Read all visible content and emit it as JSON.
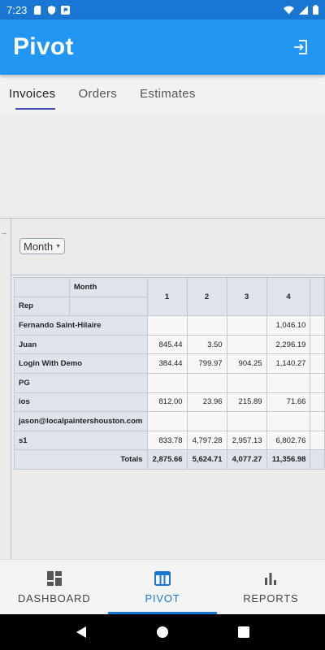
{
  "status_bar": {
    "time": "7:23",
    "icons_left": [
      "sd-card-icon",
      "shield-icon",
      "app-icon"
    ],
    "icons_right": [
      "wifi-icon",
      "signal-icon",
      "battery-icon"
    ]
  },
  "app_bar": {
    "title": "Pivot",
    "action_icon": "logout-icon",
    "color": "#2196f3"
  },
  "tabs": [
    {
      "label": "Invoices",
      "active": true
    },
    {
      "label": "Orders",
      "active": false
    },
    {
      "label": "Estimates",
      "active": false
    }
  ],
  "pivot": {
    "filter_select": "Month",
    "row_field_header": "Month",
    "rep_header": "Rep",
    "columns": [
      "1",
      "2",
      "3",
      "4"
    ],
    "rows": [
      {
        "rep": "Fernando Saint-Hilaire",
        "values": [
          "",
          "",
          "",
          "1,046.10"
        ]
      },
      {
        "rep": "Juan",
        "values": [
          "845.44",
          "3.50",
          "",
          "2,296.19"
        ]
      },
      {
        "rep": "Login With Demo",
        "values": [
          "384.44",
          "799.97",
          "904.25",
          "1,140.27"
        ]
      },
      {
        "rep": "PG",
        "values": [
          "",
          "",
          "",
          ""
        ]
      },
      {
        "rep": "ios",
        "values": [
          "812.00",
          "23.96",
          "215.89",
          "71.66"
        ]
      },
      {
        "rep": "jason@localpaintershouston.com",
        "values": [
          "",
          "",
          "",
          ""
        ]
      },
      {
        "rep": "s1",
        "values": [
          "833.78",
          "4,797.28",
          "2,957.13",
          "6,802.76"
        ]
      }
    ],
    "totals_label": "Totals",
    "totals": [
      "2,875.66",
      "5,624.71",
      "4,077.27",
      "11,356.98"
    ]
  },
  "bottom_nav": [
    {
      "label": "DASHBOARD",
      "icon": "dashboard-icon",
      "active": false
    },
    {
      "label": "PIVOT",
      "icon": "table-icon",
      "active": true
    },
    {
      "label": "REPORTS",
      "icon": "bar-chart-icon",
      "active": false
    }
  ],
  "accent_color": "#1976d2"
}
